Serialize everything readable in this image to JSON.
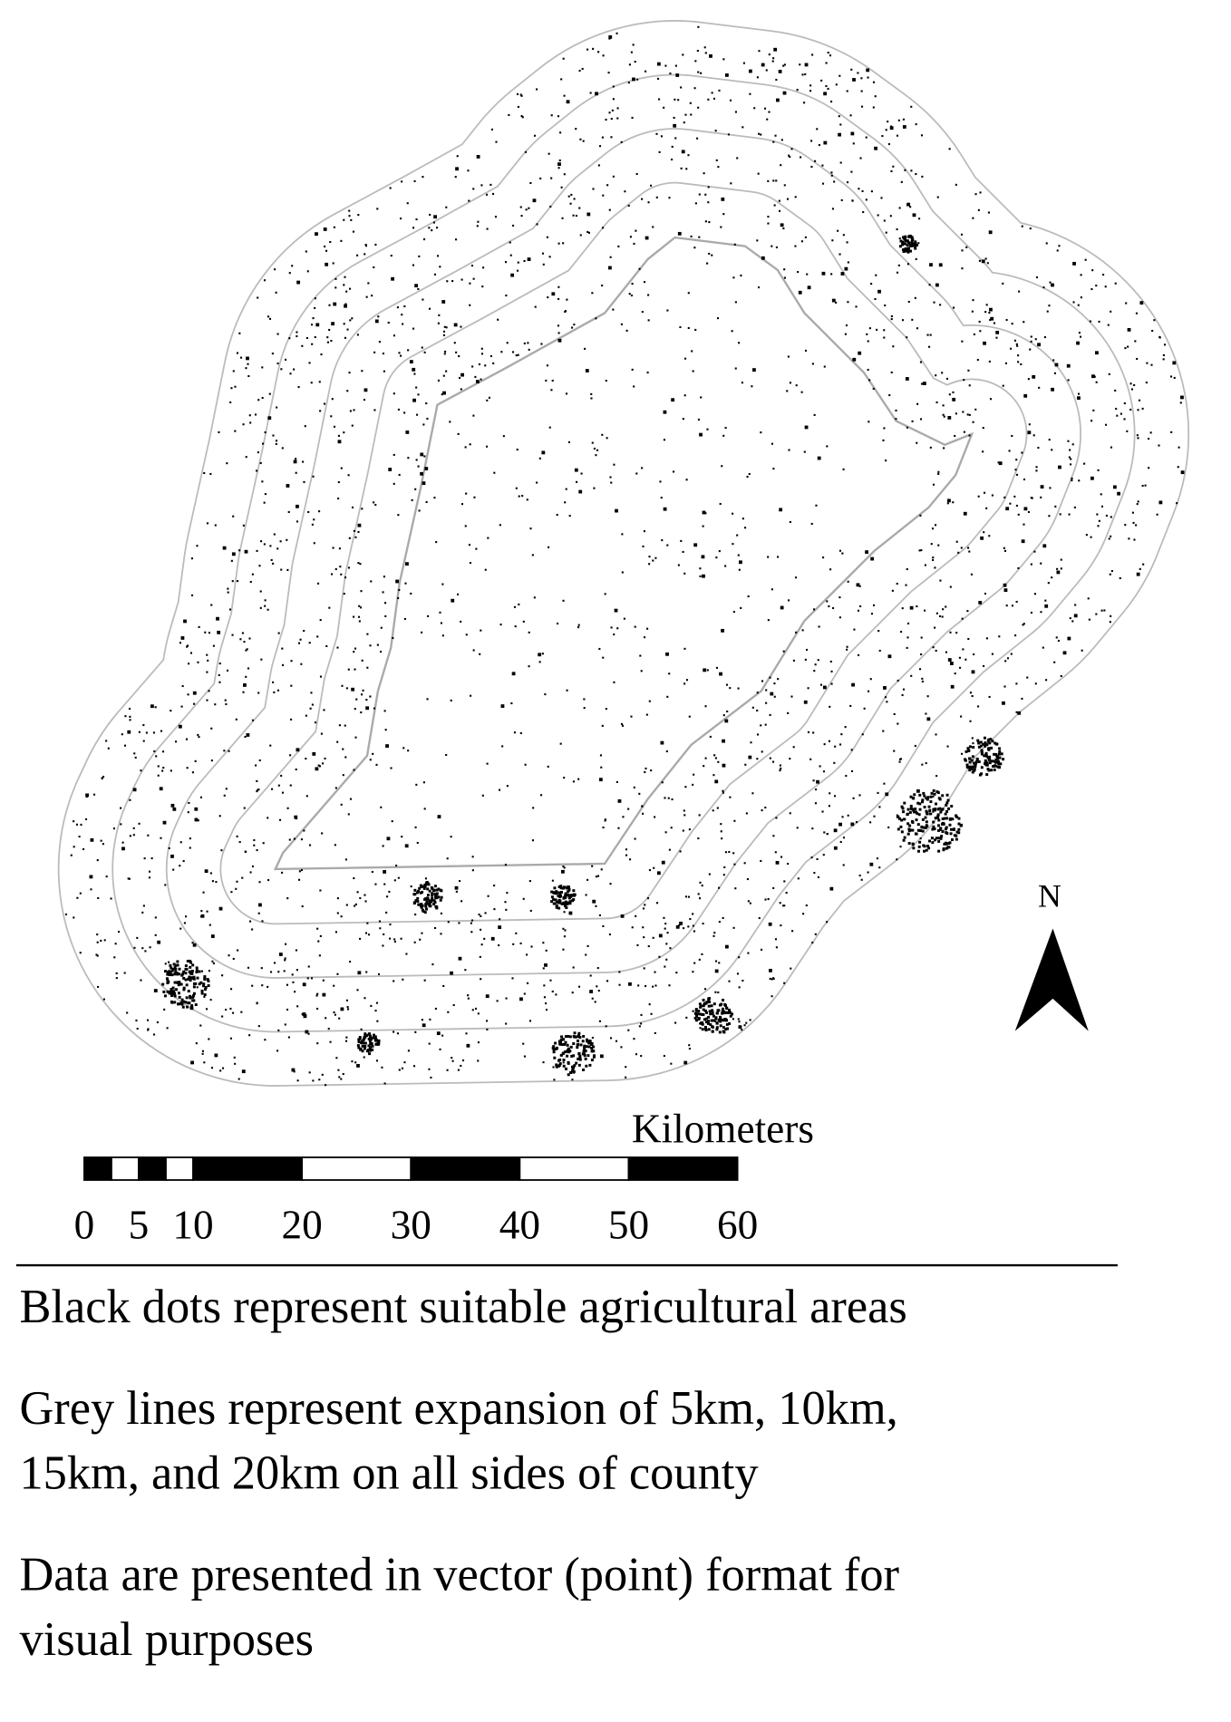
{
  "map": {
    "north_label": "N",
    "scale_bar": {
      "unit_label": "Kilometers",
      "ticks": [
        0,
        5,
        10,
        20,
        30,
        40,
        50,
        60
      ]
    }
  },
  "legend": {
    "items": [
      {
        "lines": [
          "Black dots represent suitable agricultural areas"
        ]
      },
      {
        "lines": [
          "Grey lines represent expansion of 5km, 10km,",
          "15km, and 20km on all sides of county"
        ]
      },
      {
        "lines": [
          "Data are presented in vector (point) format for",
          "visual purposes"
        ]
      }
    ]
  }
}
